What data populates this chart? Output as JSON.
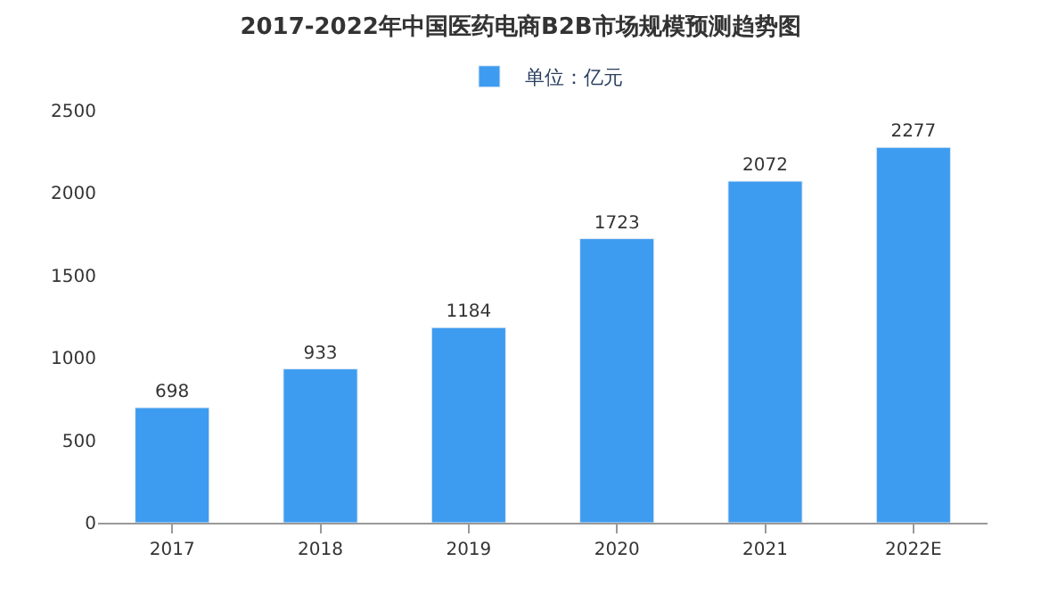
{
  "chart_data": {
    "type": "bar",
    "title": "2017-2022年中国医药电商B2B市场规模预测趋势图",
    "categories": [
      "2017",
      "2018",
      "2019",
      "2020",
      "2021",
      "2022E"
    ],
    "series": [
      {
        "name": "单位：亿元",
        "color": "#3d9cf0",
        "values": [
          698,
          933,
          1184,
          1723,
          2072,
          2277
        ]
      }
    ],
    "ylim": [
      0,
      2500
    ],
    "yticks": [
      0,
      500,
      1000,
      1500,
      2000,
      2500
    ],
    "grid": false,
    "legend": "top",
    "data_labels": true
  }
}
